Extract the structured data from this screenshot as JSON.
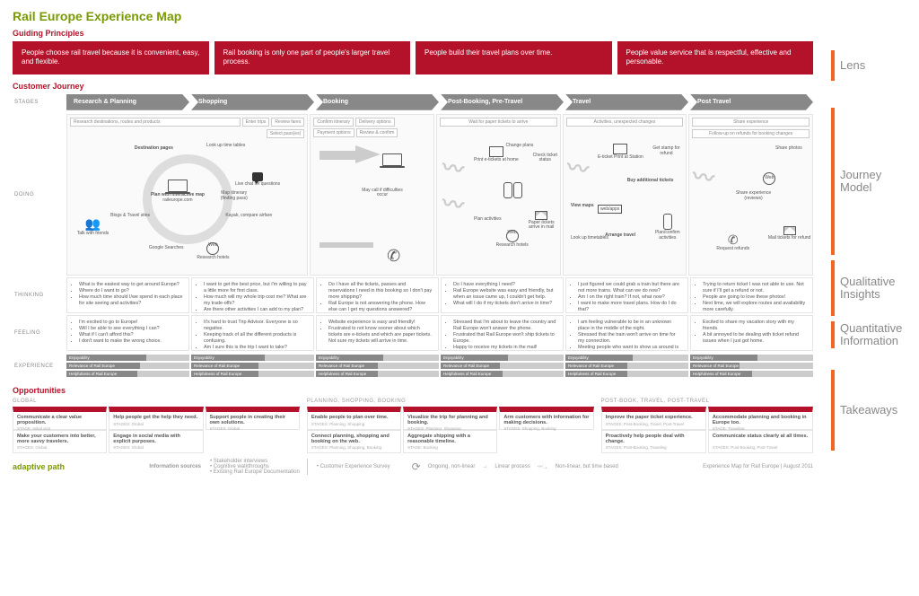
{
  "title": "Rail Europe Experience Map",
  "sections": {
    "principles": "Guiding Principles",
    "journey": "Customer Journey",
    "opportunities": "Opportunities"
  },
  "principles": [
    "People choose rail travel because it is convenient, easy, and flexible.",
    "Rail booking is only one part of people's larger travel process.",
    "People build their travel plans over time.",
    "People value service that is respectful, effective and personable."
  ],
  "side_labels": {
    "lens": "Lens",
    "journey": "Journey Model",
    "qual": "Qualitative Insights",
    "quant": "Quantitative Information",
    "take": "Takeaways"
  },
  "row_labels": {
    "stages": "STAGES",
    "doing": "DOING",
    "thinking": "THINKING",
    "feeling": "FEELING",
    "experience": "EXPERIENCE"
  },
  "stages": [
    "Research & Planning",
    "Shopping",
    "Booking",
    "Post-Booking, Pre-Travel",
    "Travel",
    "Post Travel"
  ],
  "doing": {
    "s0": {
      "top_strip": "Research destinations, routes and products",
      "nodes": [
        "Destination pages",
        "Look up time tables",
        "Live chat for questions",
        "Kayak, compare airfare",
        "Research hotels",
        "Google Searches",
        "Blogs & Travel sites",
        "Talk with friends",
        "Map itinerary (finding pass)",
        "Plan with interactive map",
        "raileurope.com"
      ]
    },
    "s1": {
      "boxes": [
        "Enter trips",
        "Review fares",
        "Select pass(es)"
      ]
    },
    "s2": {
      "boxes": [
        "Confirm itinerary",
        "Delivery options",
        "Payment options",
        "Review & confirm"
      ],
      "note": "May call if difficulties occur"
    },
    "s3": {
      "strip": "Wait for paper tickets to arrive",
      "nodes": [
        "Print e-tickets at home",
        "Change plans",
        "Check ticket status",
        "Plan activities",
        "Research hotels",
        "Paper tickets arrive in mail"
      ]
    },
    "s4": {
      "strip": "Activities, unexpected changes",
      "nodes": [
        "E-ticket Print at Station",
        "Get stamp for refund",
        "Buy additional tickets",
        "View maps",
        "Look up timetables",
        "Arrange travel",
        "Plan/confirm activities"
      ]
    },
    "s5": {
      "boxes": [
        "Share experience",
        "Follow-up on refunds for booking changes"
      ],
      "nodes": [
        "Share photos",
        "Share experience (reviews)",
        "Request refunds",
        "Mail tickets for refund"
      ]
    }
  },
  "thinking": [
    [
      "What is the easiest way to get around Europe?",
      "Where do I want to go?",
      "How much time should I/we spend in each place for site seeing and activities?"
    ],
    [
      "I want to get the best price, but I'm willing to pay a little more for first class.",
      "How much will my whole trip cost me? What are my trade-offs?",
      "Are there other activities I can add to my plan?"
    ],
    [
      "Do I have all the tickets, passes and reservations I need in this booking so I don't pay more shipping?",
      "Rail Europe is not answering the phone. How else can I get my questions answered?"
    ],
    [
      "Do I have everything I need?",
      "Rail Europe website was easy and friendly, but when an issue came up, I couldn't get help.",
      "What will I do if my tickets don't arrive in time?"
    ],
    [
      "I just figured we could grab a train but there are not more trains. What can we do now?",
      "Am I on the right train? If not, what now?",
      "I want to make more travel plans. How do I do that?"
    ],
    [
      "Trying to return ticket I was not able to use. Not sure if I'll get a refund or not.",
      "People are going to love these photos!",
      "Next time, we will explore routes and availability more carefully."
    ]
  ],
  "feeling": [
    [
      "I'm excited to go to Europe!",
      "Will I be able to see everything I can?",
      "What if I can't afford this?",
      "I don't want to make the wrong choice."
    ],
    [
      "It's hard to trust Trip Advisor. Everyone is so negative.",
      "Keeping track of all the different products is confusing.",
      "Am I sure this is the trip I want to take?"
    ],
    [
      "Website experience is easy and friendly!",
      "Frustrated to not know sooner about which tickets are e-tickets and which are paper tickets. Not sure my tickets will arrive in time."
    ],
    [
      "Stressed that I'm about to leave the country and Rail Europe won't answer the phone.",
      "Frustrated that Rail Europe won't ship tickets to Europe.",
      "Happy to receive my tickets in the mail!"
    ],
    [
      "I am feeling vulnerable to be in an unknown place in the middle of the night.",
      "Stressed that the train won't arrive on time for my connection.",
      "Meeting people who want to show us around is fun, serendipitous, and special."
    ],
    [
      "Excited to share my vacation story with my friends.",
      "A bit annoyed to be dealing with ticket refund issues when I just got home."
    ]
  ],
  "experience_labels": [
    "Enjoyability",
    "Relevance of Rail Europe",
    "Helpfulness of Rail Europe"
  ],
  "experience_values": [
    [
      65,
      60,
      58
    ],
    [
      60,
      55,
      55
    ],
    [
      55,
      50,
      50
    ],
    [
      55,
      48,
      50
    ],
    [
      55,
      50,
      50
    ],
    [
      55,
      40,
      50
    ]
  ],
  "experience_colors": {
    "bar_bg": "#cccccc",
    "bar_fill": "#888888"
  },
  "opportunities": {
    "global": {
      "title": "GLOBAL",
      "rows": [
        [
          {
            "t": "Communicate a clear value proposition.",
            "s": "STAGE: Initial visit",
            "red": true
          },
          {
            "t": "Help people get the help they need.",
            "s": "STAGES: Global",
            "red": true
          },
          {
            "t": "Support people in creating their own solutions.",
            "s": "STAGES: Global",
            "red": true
          }
        ],
        [
          {
            "t": "Make your customers into better, more savvy travelers.",
            "s": "STAGES: Global"
          },
          {
            "t": "Engage in social media with explicit purposes.",
            "s": "STAGES: Global"
          },
          {
            "t": "",
            "s": ""
          }
        ]
      ]
    },
    "psb": {
      "title": "PLANNING, SHOPPING, BOOKING",
      "rows": [
        [
          {
            "t": "Enable people to plan over time.",
            "s": "STAGES: Planning, Shopping",
            "red": true
          },
          {
            "t": "Visualize the trip for planning and booking.",
            "s": "STAGES: Planning, Shopping",
            "red": true
          },
          {
            "t": "Arm customers with information for making decisions.",
            "s": "STAGES: Shopping, Booking",
            "red": true
          }
        ],
        [
          {
            "t": "Connect planning, shopping and booking on the web.",
            "s": "STAGES: Planning, Shopping, Booking"
          },
          {
            "t": "Aggregate shipping with a reasonable timeline.",
            "s": "STAGE: Booking"
          },
          {
            "t": "",
            "s": ""
          }
        ]
      ]
    },
    "pbt": {
      "title": "POST-BOOK, TRAVEL, POST-TRAVEL",
      "rows": [
        [
          {
            "t": "Improve the paper ticket experience.",
            "s": "STAGES: Post-Booking, Travel, Post-Travel",
            "red": true
          },
          {
            "t": "Accommodate planning and booking in Europe too.",
            "s": "STAGE: Traveling",
            "red": true
          }
        ],
        [
          {
            "t": "Proactively help people deal with change.",
            "s": "STAGES: Post-Booking, Traveling"
          },
          {
            "t": "Communicate status clearly at all times.",
            "s": "STAGES: Post-Booking, Post-Travel"
          }
        ]
      ]
    }
  },
  "footer": {
    "logo": "adaptive path",
    "info_label": "Information sources",
    "info1": "• Stakeholder interviews\n• Cognitive walkthroughs\n• Existing Rail Europe Documentation",
    "info2": "• Customer Experience Survey",
    "legend": [
      "Ongoing, non-linear",
      "Linear process",
      "Non-linear, but time based"
    ],
    "credit": "Experience Map for Rail Europe  |  August 2011"
  },
  "colors": {
    "accent_red": "#b4122a",
    "accent_green": "#7a9a01",
    "accent_orange": "#f26522",
    "grey": "#888888"
  }
}
